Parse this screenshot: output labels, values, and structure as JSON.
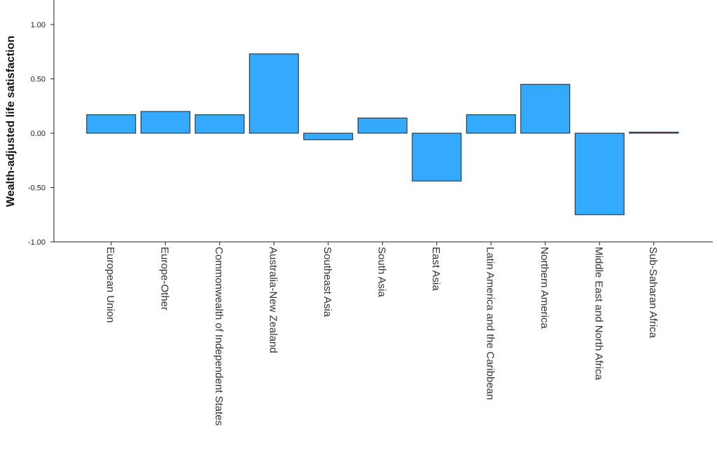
{
  "chart_data": {
    "type": "bar",
    "title": "",
    "xlabel": "",
    "ylabel": "Wealth-adjusted life satisfaction",
    "categories": [
      "European Union",
      "Europe-Other",
      "Commonwealth of Independent States",
      "Australia-New Zealand",
      "Southeast Asia",
      "South Asia",
      "East Asia",
      "Latin America and the Caribbean",
      "Northern America",
      "Middle East and North Africa",
      "Sub-Saharan Africa"
    ],
    "values": [
      0.17,
      0.2,
      0.17,
      0.73,
      -0.06,
      0.14,
      -0.44,
      0.17,
      0.45,
      -0.75,
      0.01
    ],
    "ylim": [
      -1.0,
      1.2
    ],
    "yticks": [
      "-1.00",
      "-0.50",
      "0.00",
      "0.50",
      "1.00"
    ],
    "ytick_values": [
      -1.0,
      -0.5,
      0.0,
      0.5,
      1.0
    ],
    "bar_color": "#33aaff",
    "grid": false,
    "legend": "none"
  }
}
